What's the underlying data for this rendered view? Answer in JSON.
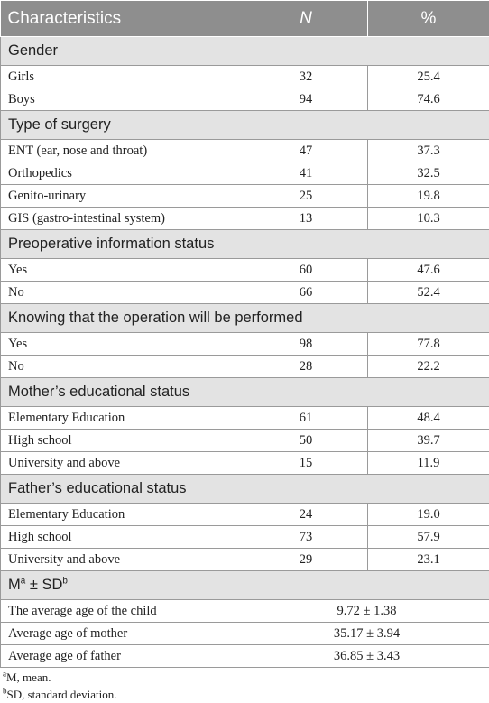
{
  "header": {
    "col1": "Characteristics",
    "col2": "N",
    "col3": "%"
  },
  "gender": {
    "title": "Gender",
    "rows": [
      {
        "label": "Girls",
        "n": "32",
        "pct": "25.4"
      },
      {
        "label": "Boys",
        "n": "94",
        "pct": "74.6"
      }
    ]
  },
  "surgery": {
    "title": "Type of surgery",
    "rows": [
      {
        "label": "ENT (ear, nose and throat)",
        "n": "47",
        "pct": "37.3"
      },
      {
        "label": "Orthopedics",
        "n": "41",
        "pct": "32.5"
      },
      {
        "label": "Genito-urinary",
        "n": "25",
        "pct": "19.8"
      },
      {
        "label": "GIS (gastro-intestinal system)",
        "n": "13",
        "pct": "10.3"
      }
    ]
  },
  "preop": {
    "title": "Preoperative information status",
    "rows": [
      {
        "label": "Yes",
        "n": "60",
        "pct": "47.6"
      },
      {
        "label": "No",
        "n": "66",
        "pct": "52.4"
      }
    ]
  },
  "knowing": {
    "title": "Knowing that the operation will be performed",
    "rows": [
      {
        "label": "Yes",
        "n": "98",
        "pct": "77.8"
      },
      {
        "label": "No",
        "n": "28",
        "pct": "22.2"
      }
    ]
  },
  "mother": {
    "title": "Mother’s educational status",
    "rows": [
      {
        "label": "Elementary Education",
        "n": "61",
        "pct": "48.4"
      },
      {
        "label": "High school",
        "n": "50",
        "pct": "39.7"
      },
      {
        "label": "University and above",
        "n": "15",
        "pct": "11.9"
      }
    ]
  },
  "father": {
    "title": "Father’s educational status",
    "rows": [
      {
        "label": "Elementary Education",
        "n": "24",
        "pct": "19.0"
      },
      {
        "label": "High school",
        "n": "73",
        "pct": "57.9"
      },
      {
        "label": "University and above",
        "n": "29",
        "pct": "23.1"
      }
    ]
  },
  "msd": {
    "title_m": "M",
    "title_sup_a": "a",
    "title_mid": " ± SD",
    "title_sup_b": "b",
    "rows": [
      {
        "label": "The average age of the child",
        "value": "9.72 ± 1.38"
      },
      {
        "label": "Average age of mother",
        "value": "35.17 ± 3.94"
      },
      {
        "label": "Average age of father",
        "value": "36.85 ± 3.43"
      }
    ]
  },
  "notes": {
    "a_sup": "a",
    "a_text": "M, mean.",
    "b_sup": "b",
    "b_text": "SD, standard deviation."
  }
}
